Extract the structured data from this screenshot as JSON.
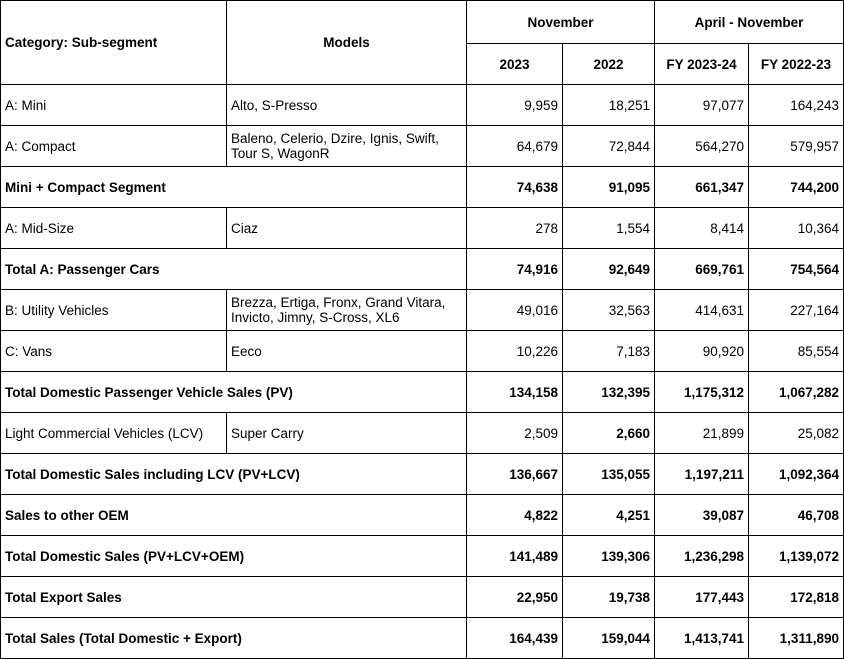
{
  "header": {
    "category": "Category: Sub-segment",
    "models": "Models",
    "november": "November",
    "april_november": "April - November",
    "y2023": "2023",
    "y2022": "2022",
    "fy2324": "FY 2023-24",
    "fy2223": "FY 2022-23"
  },
  "rows": [
    {
      "category": "A: Mini",
      "models": "Alto, S-Presso",
      "nov2023": "9,959",
      "nov2022": "18,251",
      "fy2324": "97,077",
      "fy2223": "164,243"
    },
    {
      "category": "A: Compact",
      "models": "Baleno, Celerio, Dzire, Ignis, Swift, Tour S, WagonR",
      "nov2023": "64,679",
      "nov2022": "72,844",
      "fy2324": "564,270",
      "fy2223": "579,957"
    },
    {
      "category": "Mini + Compact Segment",
      "nov2023": "74,638",
      "nov2022": "91,095",
      "fy2324": "661,347",
      "fy2223": "744,200"
    },
    {
      "category": "A: Mid-Size",
      "models": "Ciaz",
      "nov2023": "278",
      "nov2022": "1,554",
      "fy2324": "8,414",
      "fy2223": "10,364"
    },
    {
      "category": "Total A: Passenger Cars",
      "nov2023": "74,916",
      "nov2022": "92,649",
      "fy2324": "669,761",
      "fy2223": "754,564"
    },
    {
      "category": "B: Utility Vehicles",
      "models": "Brezza, Ertiga, Fronx, Grand Vitara, Invicto, Jimny, S-Cross, XL6",
      "nov2023": "49,016",
      "nov2022": "32,563",
      "fy2324": "414,631",
      "fy2223": "227,164"
    },
    {
      "category": "C: Vans",
      "models": "Eeco",
      "nov2023": "10,226",
      "nov2022": "7,183",
      "fy2324": "90,920",
      "fy2223": "85,554"
    },
    {
      "category": "Total Domestic Passenger Vehicle Sales (PV)",
      "nov2023": "134,158",
      "nov2022": "132,395",
      "fy2324": "1,175,312",
      "fy2223": "1,067,282"
    },
    {
      "category": "Light Commercial Vehicles (LCV)",
      "models": "Super Carry",
      "nov2023": "2,509",
      "nov2022": "2,660",
      "fy2324": "21,899",
      "fy2223": "25,082"
    },
    {
      "category": "Total Domestic Sales including LCV (PV+LCV)",
      "nov2023": "136,667",
      "nov2022": "135,055",
      "fy2324": "1,197,211",
      "fy2223": "1,092,364"
    },
    {
      "category": "Sales to other OEM",
      "nov2023": "4,822",
      "nov2022": "4,251",
      "fy2324": "39,087",
      "fy2223": "46,708"
    },
    {
      "category": "Total Domestic Sales (PV+LCV+OEM)",
      "nov2023": "141,489",
      "nov2022": "139,306",
      "fy2324": "1,236,298",
      "fy2223": "1,139,072"
    },
    {
      "category": "Total Export Sales",
      "nov2023": "22,950",
      "nov2022": "19,738",
      "fy2324": "177,443",
      "fy2223": "172,818"
    },
    {
      "category": "Total Sales (Total Domestic + Export)",
      "nov2023": "164,439",
      "nov2022": "159,044",
      "fy2324": "1,413,741",
      "fy2223": "1,311,890"
    }
  ]
}
